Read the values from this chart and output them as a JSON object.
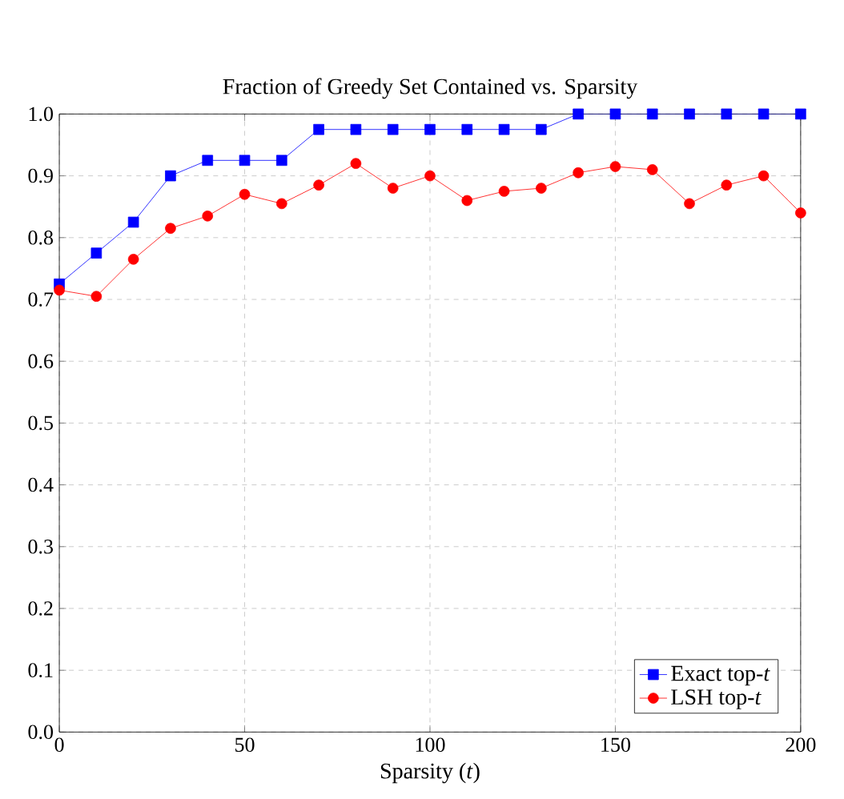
{
  "chart_data": {
    "type": "line",
    "title": "Fraction of Greedy Set Contained vs. Sparsity",
    "xlabel": "Sparsity (*t*)",
    "x": [
      0,
      10,
      20,
      30,
      40,
      50,
      60,
      70,
      80,
      90,
      100,
      110,
      120,
      130,
      140,
      150,
      160,
      170,
      180,
      190,
      200
    ],
    "series": [
      {
        "name": "Exact top-*t*",
        "color": "#0000ff",
        "marker": "square",
        "values": [
          0.725,
          0.775,
          0.825,
          0.9,
          0.925,
          0.925,
          0.925,
          0.975,
          0.975,
          0.975,
          0.975,
          0.975,
          0.975,
          0.975,
          1.0,
          1.0,
          1.0,
          1.0,
          1.0,
          1.0,
          1.0
        ]
      },
      {
        "name": "LSH top-*t*",
        "color": "#ff0000",
        "marker": "circle",
        "values": [
          0.715,
          0.705,
          0.765,
          0.815,
          0.835,
          0.87,
          0.855,
          0.885,
          0.92,
          0.88,
          0.9,
          0.86,
          0.875,
          0.88,
          0.905,
          0.915,
          0.91,
          0.855,
          0.885,
          0.9,
          0.84
        ]
      }
    ],
    "xlim": [
      0,
      200
    ],
    "ylim": [
      0,
      1
    ],
    "xticks": [
      0,
      50,
      100,
      150,
      200
    ],
    "yticks": [
      {
        "value": 0,
        "label": "0.0"
      },
      0.1,
      0.2,
      0.3,
      0.4,
      0.5,
      0.6,
      0.7,
      0.8,
      0.9,
      {
        "value": 1,
        "label": "1.0"
      }
    ],
    "grid": true,
    "legend": "bottom right",
    "line_style": "solid"
  }
}
